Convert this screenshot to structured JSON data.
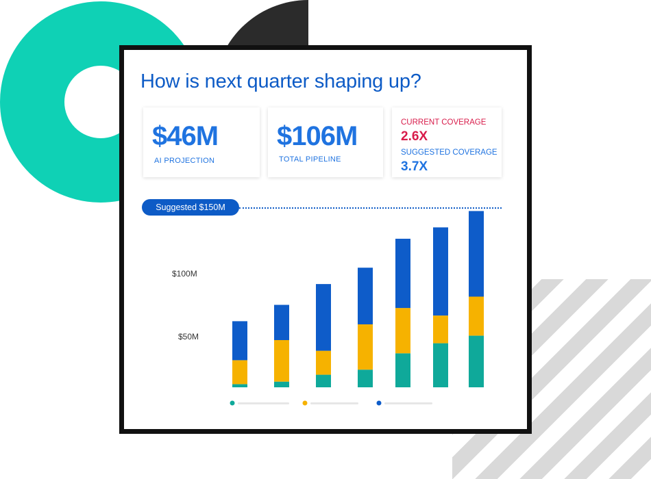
{
  "headline": "How is next quarter shaping up?",
  "kpis": {
    "projection_value": "$46M",
    "projection_label": "AI PROJECTION",
    "pipeline_value": "$106M",
    "pipeline_label": "TOTAL PIPELINE",
    "current_coverage_label": "CURRENT COVERAGE",
    "current_coverage_value": "2.6X",
    "suggested_coverage_label": "SUGGESTED COVERAGE",
    "suggested_coverage_value": "3.7X"
  },
  "suggested_pill": "Suggested $150M",
  "colors": {
    "brand_blue": "#0d5bc6",
    "kpi_blue": "#1f73e0",
    "coverage_red": "#d81b4a",
    "teal": "#0fa99a",
    "gold": "#f6b200",
    "blue": "#0e5cc9",
    "ring_teal": "#0fd1b5"
  },
  "chart_data": {
    "type": "bar",
    "stacked": true,
    "categories": [
      "",
      "",
      "",
      "",
      "",
      "",
      ""
    ],
    "series": [
      {
        "color": "#0fa99a",
        "values": [
          2.5,
          4.5,
          10,
          14,
          27,
          35,
          41
        ]
      },
      {
        "color": "#f6b200",
        "values": [
          19,
          33,
          19,
          36,
          36,
          22,
          31
        ]
      },
      {
        "color": "#0e5cc9",
        "values": [
          31,
          28,
          53,
          45,
          55,
          70,
          68
        ]
      }
    ],
    "yticks": [
      {
        "label": "$50M",
        "value": 50
      },
      {
        "label": "$100M",
        "value": 100
      }
    ],
    "reference_line": {
      "value": 150,
      "label": "Suggested $150M"
    },
    "ylim": [
      0,
      150
    ],
    "legend": {
      "placement": "bottom",
      "entries": [
        "",
        "",
        ""
      ]
    }
  }
}
